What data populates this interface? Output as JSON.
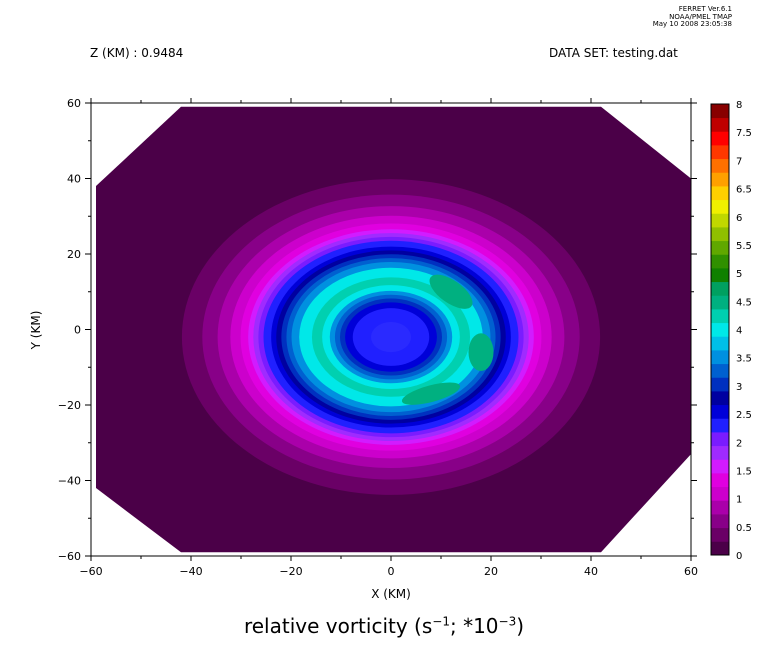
{
  "header": {
    "program": "FERRET  Ver.6.1",
    "org": "NOAA/PMEL TMAP",
    "timestamp": "May 10 2008 23:05:38",
    "z_level": "Z (KM) : 0.9484",
    "dataset": "DATA SET: testing.dat"
  },
  "caption": {
    "text_before": "relative vorticity (s",
    "sup1": "−1",
    "text_mid": "; *10",
    "sup2": "−3",
    "text_after": ")"
  },
  "chart_data": {
    "type": "heatmap",
    "subtype": "filled-contour",
    "xlabel": "X (KM)",
    "ylabel": "Y (KM)",
    "xlim": [
      -60,
      60
    ],
    "ylim": [
      -60,
      60
    ],
    "x_ticks": [
      -60,
      -40,
      -20,
      0,
      20,
      40,
      60
    ],
    "y_ticks": [
      -60,
      -40,
      -20,
      0,
      20,
      40,
      60
    ],
    "x_tick_labels": [
      "−60",
      "−40",
      "−20",
      "0",
      "20",
      "40",
      "60"
    ],
    "y_tick_labels": [
      "−60",
      "−40",
      "−20",
      "0",
      "20",
      "40",
      "60"
    ],
    "colorbar": {
      "levels": [
        0,
        0.25,
        0.5,
        0.75,
        1,
        1.25,
        1.5,
        1.75,
        2,
        2.25,
        2.5,
        2.75,
        3,
        3.25,
        3.5,
        3.75,
        4,
        4.25,
        4.5,
        4.75,
        5,
        5.25,
        5.5,
        5.75,
        6,
        6.25,
        6.5,
        6.75,
        7,
        7.25,
        7.5,
        7.75,
        8
      ],
      "labels": [
        "0",
        "0.5",
        "1",
        "1.5",
        "2",
        "2.5",
        "3",
        "3.5",
        "4",
        "4.5",
        "5",
        "5.5",
        "6",
        "6.5",
        "7",
        "7.5",
        "8"
      ],
      "colors": [
        "#4b0048",
        "#6a0066",
        "#880088",
        "#aa00aa",
        "#cc00cc",
        "#e000e0",
        "#d21bff",
        "#9f2bff",
        "#7a1cff",
        "#2020ff",
        "#0000d8",
        "#0000a0",
        "#0030c0",
        "#0060d0",
        "#0090e0",
        "#00c0e8",
        "#00e8e8",
        "#00d0b0",
        "#00b080",
        "#00a060",
        "#108000",
        "#309000",
        "#60a800",
        "#90c000",
        "#c0d800",
        "#f0f000",
        "#ffd000",
        "#ffa000",
        "#ff7000",
        "#ff3800",
        "#ff0000",
        "#c00000",
        "#880000"
      ]
    },
    "field": {
      "description_values": {
        "background": 0.1,
        "rings": [
          {
            "r": 41,
            "value": 0.35
          },
          {
            "r": 37,
            "value": 0.6
          },
          {
            "r": 34,
            "value": 0.85
          },
          {
            "r": 31.5,
            "value": 1.1
          },
          {
            "r": 29.5,
            "value": 1.35
          },
          {
            "r": 28,
            "value": 1.6
          },
          {
            "r": 27,
            "value": 1.85
          },
          {
            "r": 26,
            "value": 2.1
          },
          {
            "r": 25,
            "value": 2.35
          },
          {
            "r": 23.5,
            "value": 2.6
          },
          {
            "r": 22.5,
            "value": 2.85
          },
          {
            "r": 21.5,
            "value": 3.1
          },
          {
            "r": 20.5,
            "value": 3.4
          },
          {
            "r": 19.5,
            "value": 3.7
          },
          {
            "r": 18,
            "value": 4.0
          },
          {
            "r": 15.5,
            "value": 4.3
          },
          {
            "r": 13.5,
            "value": 4.0
          },
          {
            "r": 12,
            "value": 3.6
          },
          {
            "r": 11,
            "value": 3.3
          },
          {
            "r": 10,
            "value": 3.0
          },
          {
            "r": 9,
            "value": 2.7
          },
          {
            "r": 7.5,
            "value": 2.3
          }
        ]
      },
      "domain_polygon": [
        [
          -42,
          59
        ],
        [
          42,
          59
        ],
        [
          60,
          40
        ],
        [
          60,
          -33
        ],
        [
          42,
          -59
        ],
        [
          -42,
          -59
        ],
        [
          -59,
          -42
        ],
        [
          -59,
          38
        ]
      ]
    }
  }
}
